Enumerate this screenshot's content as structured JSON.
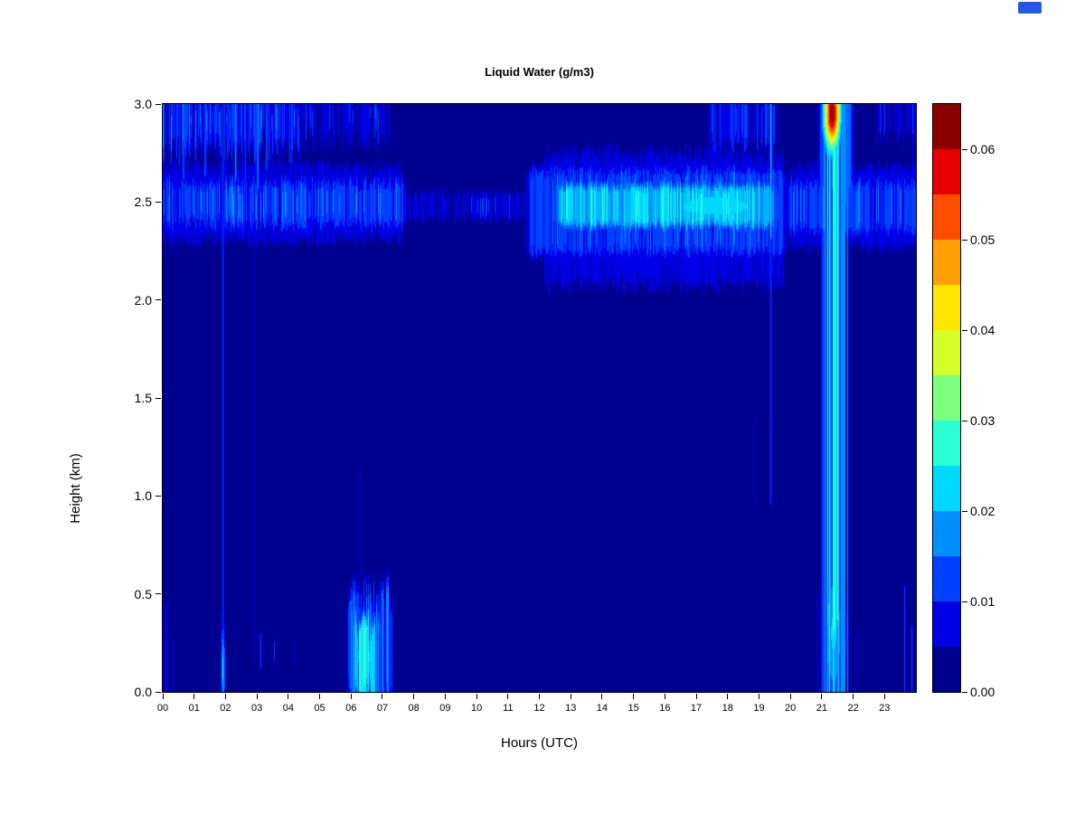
{
  "title": "Liquid Water (g/m3)",
  "xlabel": "Hours (UTC)",
  "ylabel": "Height (km)",
  "decorations": {
    "top_right_square_color": "#2457E8"
  },
  "chart_data": {
    "type": "heatmap",
    "title": "Liquid Water (g/m3)",
    "xlabel": "Hours (UTC)",
    "ylabel": "Height (km)",
    "x_range": [
      0,
      24
    ],
    "y_range": [
      0,
      3
    ],
    "x_ticks": [
      "00",
      "01",
      "02",
      "03",
      "04",
      "05",
      "06",
      "07",
      "08",
      "09",
      "10",
      "11",
      "12",
      "13",
      "14",
      "15",
      "16",
      "17",
      "18",
      "19",
      "20",
      "21",
      "22",
      "23"
    ],
    "y_ticks": [
      "0.0",
      "0.5",
      "1.0",
      "1.5",
      "2.0",
      "2.5",
      "3.0"
    ],
    "colorbar": {
      "tick_labels": [
        "0.00",
        "0.01",
        "0.02",
        "0.03",
        "0.04",
        "0.05",
        "0.06"
      ],
      "tick_step": 0.01,
      "level_step": 0.005,
      "level_min": 0.0,
      "level_max": 0.065,
      "colors": [
        "#00008F",
        "#0000E6",
        "#0040FF",
        "#0090FF",
        "#00D8FF",
        "#2BFFD4",
        "#7CFF7C",
        "#D4FF2B",
        "#FFE600",
        "#FFA000",
        "#FF4D00",
        "#E60000",
        "#8B0000"
      ]
    },
    "base_value": 0.002,
    "features": [
      {
        "type": "band",
        "t0": -0.3,
        "t1": 7.7,
        "h0": 2.36,
        "h1": 2.62,
        "v": 0.012,
        "ts": 0.15,
        "hs": 0.07,
        "jit": 0.5,
        "nz": 0.35
      },
      {
        "type": "band",
        "t0": -0.3,
        "t1": 7.7,
        "h0": 2.28,
        "h1": 2.7,
        "v": 0.0066,
        "ts": 0.2,
        "hs": 0.05,
        "jit": 0.6,
        "nz": 0.4
      },
      {
        "type": "band",
        "t0": 7.7,
        "t1": 11.6,
        "h0": 2.4,
        "h1": 2.56,
        "v": 0.0058,
        "ts": 0.3,
        "hs": 0.04,
        "jit": 0.6,
        "nz": 0.8
      },
      {
        "type": "band",
        "t0": 12.0,
        "t1": 19.9,
        "h0": 2.05,
        "h1": 2.78,
        "v": 0.0066,
        "ts": 0.35,
        "hs": 0.08,
        "jit": 0.5,
        "nz": 0.3
      },
      {
        "type": "band",
        "t0": 11.6,
        "t1": 19.9,
        "h0": 2.22,
        "h1": 2.68,
        "v": 0.012,
        "ts": 0.25,
        "hs": 0.06,
        "jit": 0.4,
        "nz": 0.3
      },
      {
        "type": "band",
        "t0": 12.4,
        "t1": 19.6,
        "h0": 2.36,
        "h1": 2.6,
        "v": 0.021,
        "ts": 0.4,
        "hs": 0.05,
        "jit": 0.4,
        "nz": 0.25
      },
      {
        "type": "blob",
        "tc": 17.6,
        "tr": 1.6,
        "hc": 2.48,
        "hr": 0.07,
        "v": 0.0245
      },
      {
        "type": "band",
        "t0": 19.9,
        "t1": 24.3,
        "h0": 2.33,
        "h1": 2.62,
        "v": 0.012,
        "ts": 0.2,
        "hs": 0.06,
        "jit": 0.5,
        "nz": 0.35
      },
      {
        "type": "band",
        "t0": 19.9,
        "t1": 24.3,
        "h0": 2.25,
        "h1": 2.7,
        "v": 0.0066,
        "ts": 0.2,
        "hs": 0.05,
        "jit": 0.6,
        "nz": 0.4
      },
      {
        "type": "band",
        "t0": -0.3,
        "t1": 4.4,
        "h0": 2.74,
        "h1": 3.08,
        "v": 0.0095,
        "ts": 0.2,
        "hs": 0.1,
        "jit": 0.8,
        "nz": 0.7
      },
      {
        "type": "band",
        "t0": -0.3,
        "t1": 7.3,
        "h0": 2.8,
        "h1": 3.08,
        "v": 0.0063,
        "ts": 0.3,
        "hs": 0.08,
        "jit": 0.8,
        "nz": 0.7
      },
      {
        "type": "band",
        "t0": 17.4,
        "t1": 19.6,
        "h0": 2.76,
        "h1": 3.08,
        "v": 0.0085,
        "ts": 0.2,
        "hs": 0.08,
        "jit": 0.7,
        "nz": 0.6
      },
      {
        "type": "band",
        "t0": 22.6,
        "t1": 24.3,
        "h0": 2.82,
        "h1": 3.08,
        "v": 0.006,
        "ts": 0.2,
        "hs": 0.06,
        "jit": 0.8,
        "nz": 0.8
      },
      {
        "type": "col",
        "tc": 0.65,
        "tw": 0.06,
        "h0": 2.6,
        "h1": 3.08,
        "v": 0.013
      },
      {
        "type": "col",
        "tc": 1.35,
        "tw": 0.05,
        "h0": 2.62,
        "h1": 3.08,
        "v": 0.013
      },
      {
        "type": "col",
        "tc": 2.33,
        "tw": 0.05,
        "h0": 2.6,
        "h1": 3.08,
        "v": 0.013
      },
      {
        "type": "col",
        "tc": 2.62,
        "tw": 0.05,
        "h0": 2.6,
        "h1": 3.08,
        "v": 0.013
      },
      {
        "type": "col",
        "tc": 3.02,
        "tw": 0.06,
        "h0": 2.55,
        "h1": 3.08,
        "v": 0.014
      },
      {
        "type": "col",
        "tc": 3.32,
        "tw": 0.04,
        "h0": 2.65,
        "h1": 3.08,
        "v": 0.012
      },
      {
        "type": "col",
        "tc": 1.92,
        "tw": 0.035,
        "h0": -0.05,
        "h1": 3.08,
        "v": 0.015,
        "nz": 0.5
      },
      {
        "type": "blob",
        "tc": 1.92,
        "tr": 0.05,
        "hc": 0.12,
        "hr": 0.18,
        "v": 0.021
      },
      {
        "type": "col",
        "tc": 2.93,
        "tw": 0.025,
        "h0": 0.15,
        "h1": 3.08,
        "v": 0.009,
        "nz": 0.5
      },
      {
        "type": "col",
        "tc": 19.38,
        "tw": 0.03,
        "h0": 0.95,
        "h1": 3.08,
        "v": 0.013,
        "nz": 0.5
      },
      {
        "type": "col",
        "tc": 19.38,
        "tw": 0.035,
        "h0": 2.3,
        "h1": 3.08,
        "v": 0.017
      },
      {
        "type": "col",
        "tc": 18.88,
        "tw": 0.02,
        "h0": 0.95,
        "h1": 1.4,
        "v": 0.008
      },
      {
        "type": "col",
        "tc": 0.1,
        "tw": 0.04,
        "h0": -0.05,
        "h1": 0.45,
        "v": 0.012
      },
      {
        "type": "col",
        "tc": 0.3,
        "tw": 0.03,
        "h0": -0.05,
        "h1": 0.3,
        "v": 0.01
      },
      {
        "type": "col",
        "tc": 3.12,
        "tw": 0.03,
        "h0": 0.1,
        "h1": 0.32,
        "v": 0.012
      },
      {
        "type": "col",
        "tc": 3.55,
        "tw": 0.025,
        "h0": 0.14,
        "h1": 0.28,
        "v": 0.01
      },
      {
        "type": "col",
        "tc": 4.2,
        "tw": 0.025,
        "h0": 0.12,
        "h1": 0.26,
        "v": 0.01
      },
      {
        "type": "col",
        "tc": 23.65,
        "tw": 0.035,
        "h0": -0.05,
        "h1": 0.55,
        "v": 0.012
      },
      {
        "type": "col",
        "tc": 23.88,
        "tw": 0.03,
        "h0": -0.05,
        "h1": 0.35,
        "v": 0.011
      },
      {
        "type": "col",
        "tc": 23.9,
        "tw": 0.04,
        "h0": 2.45,
        "h1": 3.08,
        "v": 0.013
      },
      {
        "type": "col",
        "tc": 6.3,
        "tw": 0.02,
        "h0": 0.5,
        "h1": 1.15,
        "v": 0.008
      },
      {
        "type": "col",
        "tc": 12.25,
        "tw": 0.08,
        "h0": 2.05,
        "h1": 2.4,
        "v": 0.008
      },
      {
        "type": "col",
        "tc": 13.3,
        "tw": 0.06,
        "h0": 2.1,
        "h1": 2.4,
        "v": 0.008
      },
      {
        "type": "band",
        "t0": 5.85,
        "t1": 7.35,
        "h0": -0.08,
        "h1": 0.52,
        "v": 0.012,
        "ts": 0.12,
        "hs": 0.1,
        "jit": 0.9,
        "nz": 0.5
      },
      {
        "type": "band",
        "t0": 6.05,
        "t1": 6.95,
        "h0": -0.05,
        "h1": 0.38,
        "v": 0.021,
        "ts": 0.15,
        "hs": 0.08,
        "jit": 0.8,
        "nz": 0.4
      },
      {
        "type": "blob",
        "tc": 6.45,
        "tr": 0.22,
        "hc": 0.18,
        "hr": 0.1,
        "v": 0.025
      },
      {
        "type": "band",
        "t0": 21.0,
        "t1": 21.85,
        "h0": -0.08,
        "h1": 3.08,
        "v": 0.014,
        "ts": 0.1,
        "hs": 0.05,
        "jit": 0.3,
        "nz": 0.8
      },
      {
        "type": "band",
        "t0": 21.12,
        "t1": 21.6,
        "h0": 0.25,
        "h1": 3.08,
        "v": 0.019,
        "ts": 0.08,
        "hs": 0.1,
        "jit": 0.5,
        "nz": 0.7
      },
      {
        "type": "band",
        "t0": 20.9,
        "t1": 22.0,
        "h0": 2.5,
        "h1": 3.08,
        "v": 0.012,
        "ts": 0.15,
        "hs": 0.1,
        "jit": 0.6,
        "nz": 0.6
      },
      {
        "type": "blob",
        "tc": 21.33,
        "tr": 0.2,
        "hc": 2.95,
        "hr": 0.14,
        "v": 0.063
      },
      {
        "type": "blob",
        "tc": 21.38,
        "tr": 0.25,
        "hc": 0.3,
        "hr": 0.3,
        "v": 0.021
      },
      {
        "type": "col",
        "tc": 20.88,
        "tw": 0.03,
        "h0": -0.05,
        "h1": 0.5,
        "v": 0.01
      },
      {
        "type": "col",
        "tc": 22.08,
        "tw": 0.03,
        "h0": -0.05,
        "h1": 0.3,
        "v": 0.009
      }
    ]
  }
}
